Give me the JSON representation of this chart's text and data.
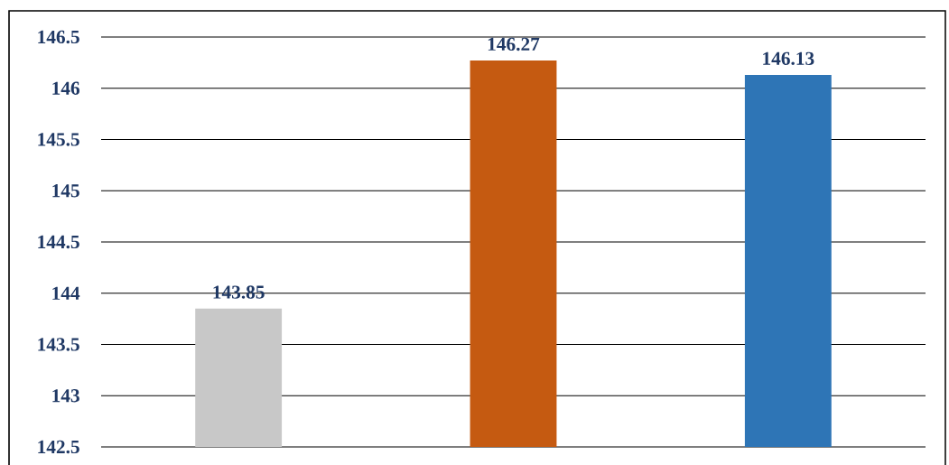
{
  "chart_data": {
    "type": "bar",
    "categories": [
      null,
      null,
      null
    ],
    "values": [
      143.85,
      146.27,
      146.13
    ],
    "colors": [
      "#c8c8c8",
      "#c55a11",
      "#2e75b6"
    ],
    "ylim": [
      142.5,
      146.5
    ],
    "yticks": [
      142.5,
      143,
      143.5,
      144,
      144.5,
      145,
      145.5,
      146,
      146.5
    ],
    "grid": "y",
    "data_labels": true
  }
}
